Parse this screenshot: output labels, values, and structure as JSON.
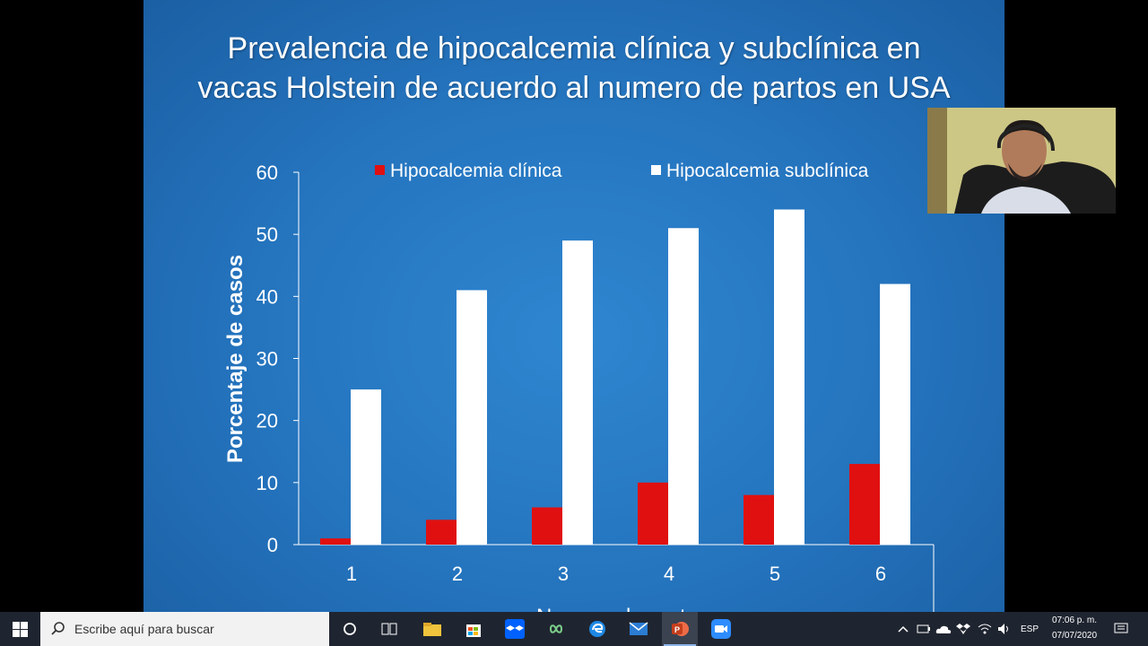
{
  "slide": {
    "title_line1": "Prevalencia de hipocalcemia clínica y subclínica en",
    "title_line2": "vacas Holstein de acuerdo al numero de partos en USA"
  },
  "chart_data": {
    "type": "bar",
    "categories": [
      "1",
      "2",
      "3",
      "4",
      "5",
      "6"
    ],
    "series": [
      {
        "name": "Hipocalcemia clínica",
        "color": "#e01010",
        "values": [
          1,
          4,
          6,
          10,
          8,
          13
        ]
      },
      {
        "name": "Hipocalcemia subclínica",
        "color": "#ffffff",
        "values": [
          25,
          41,
          49,
          51,
          54,
          42
        ]
      }
    ],
    "yticks": [
      "0",
      "10",
      "20",
      "30",
      "40",
      "50",
      "60"
    ],
    "ylim": [
      0,
      60
    ],
    "ylabel": "Porcentaje de casos",
    "xlabel": "Numero de parto",
    "legend": "top"
  },
  "taskbar": {
    "search_placeholder": "Escribe aquí para buscar",
    "language": "ESP",
    "time": "07:06 p. m.",
    "date": "07/07/2020"
  },
  "colors": {
    "slide_bg": "#2473bd",
    "taskbar_bg": "#1f2530",
    "series_clinica": "#e01010",
    "series_subclinica": "#ffffff"
  },
  "icons": [
    "windows-start-icon",
    "search-icon",
    "cortana-icon",
    "task-view-icon",
    "file-explorer-icon",
    "store-icon",
    "dropbox-icon",
    "infinity-app-icon",
    "edge-icon",
    "mail-icon",
    "powerpoint-icon",
    "zoom-icon",
    "chevron-up-icon",
    "battery-icon",
    "onedrive-icon",
    "dropbox-tray-icon",
    "wifi-icon",
    "volume-icon",
    "notification-icon"
  ]
}
